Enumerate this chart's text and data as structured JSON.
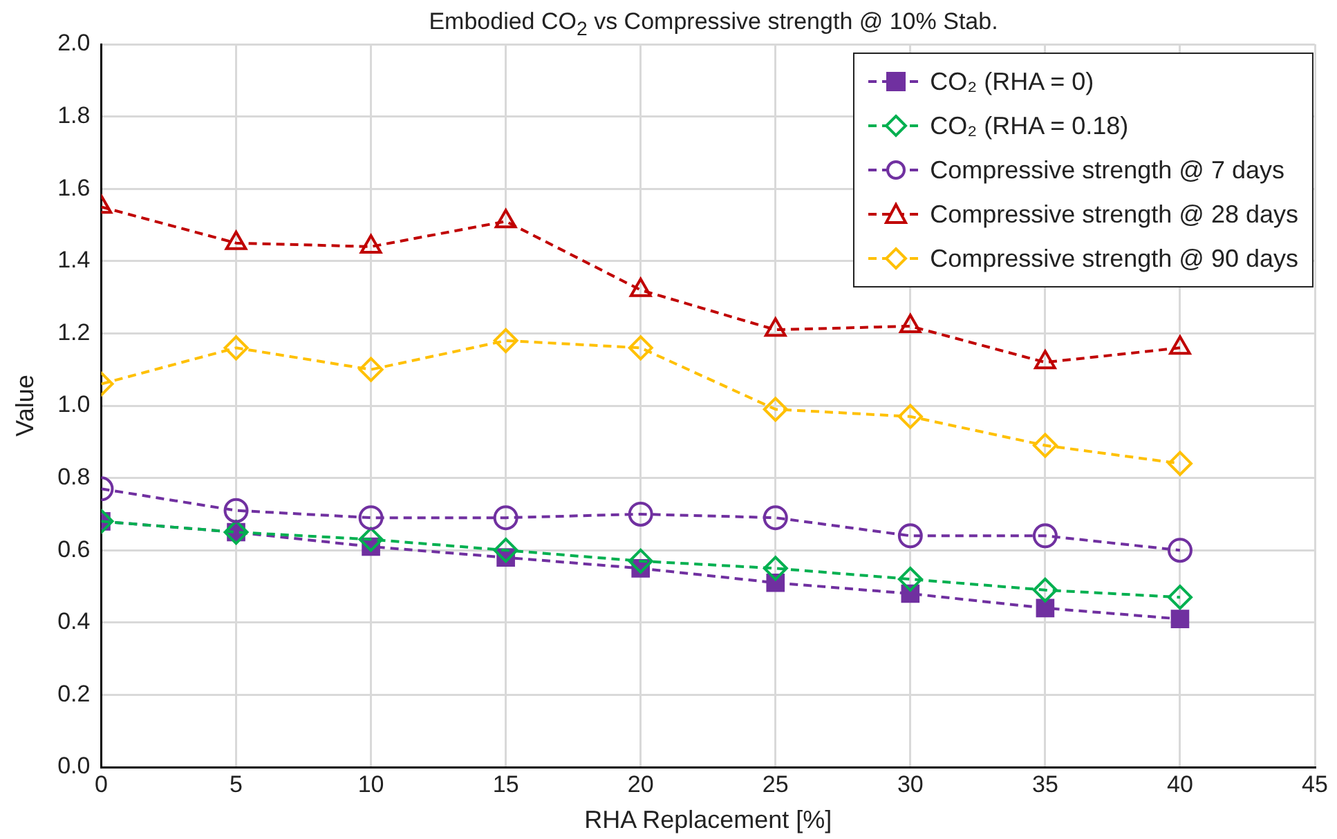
{
  "chart_data": {
    "type": "line",
    "title": "Embodied CO$_{2}$ vs Compressive strength @ 10% Stab.",
    "xlabel": "RHA Replacement [%]",
    "ylabel": "Value",
    "x": [
      0,
      5,
      10,
      15,
      20,
      25,
      30,
      35,
      40
    ],
    "series": [
      {
        "name": "CO₂ (RHA = 0)",
        "color": "#7030a0",
        "marker": "square",
        "values": [
          0.68,
          0.65,
          0.61,
          0.58,
          0.55,
          0.51,
          0.48,
          0.44,
          0.41
        ]
      },
      {
        "name": "CO₂ (RHA = 0.18)",
        "color": "#00b050",
        "marker": "diamond",
        "values": [
          0.68,
          0.65,
          0.63,
          0.6,
          0.57,
          0.55,
          0.52,
          0.49,
          0.47
        ]
      },
      {
        "name": "Compressive strength @ 7 days",
        "color": "#7030a0",
        "marker": "circle",
        "values": [
          0.77,
          0.71,
          0.69,
          0.69,
          0.7,
          0.69,
          0.64,
          0.64,
          0.6
        ]
      },
      {
        "name": "Compressive strength @ 28 days",
        "color": "#c00000",
        "marker": "triangle",
        "values": [
          1.55,
          1.45,
          1.44,
          1.51,
          1.32,
          1.21,
          1.22,
          1.12,
          1.16
        ]
      },
      {
        "name": "Compressive strength @ 90 days",
        "color": "#ffc000",
        "marker": "diamond",
        "values": [
          1.06,
          1.16,
          1.1,
          1.18,
          1.16,
          0.99,
          0.97,
          0.89,
          0.84
        ]
      }
    ],
    "xlim": [
      0,
      45
    ],
    "xticks": [
      0,
      5,
      10,
      15,
      20,
      25,
      30,
      35,
      40,
      45
    ],
    "ylim": [
      0,
      2
    ],
    "yticks": [
      {
        "value": 0,
        "label": "0.0"
      },
      0.2,
      0.4,
      0.6,
      0.8,
      {
        "value": 1,
        "label": "1.0"
      },
      1.2,
      1.4,
      1.6,
      1.8,
      {
        "value": 2,
        "label": "2.0"
      }
    ],
    "grid": true,
    "legend": "top right",
    "line_style": "dashed"
  }
}
